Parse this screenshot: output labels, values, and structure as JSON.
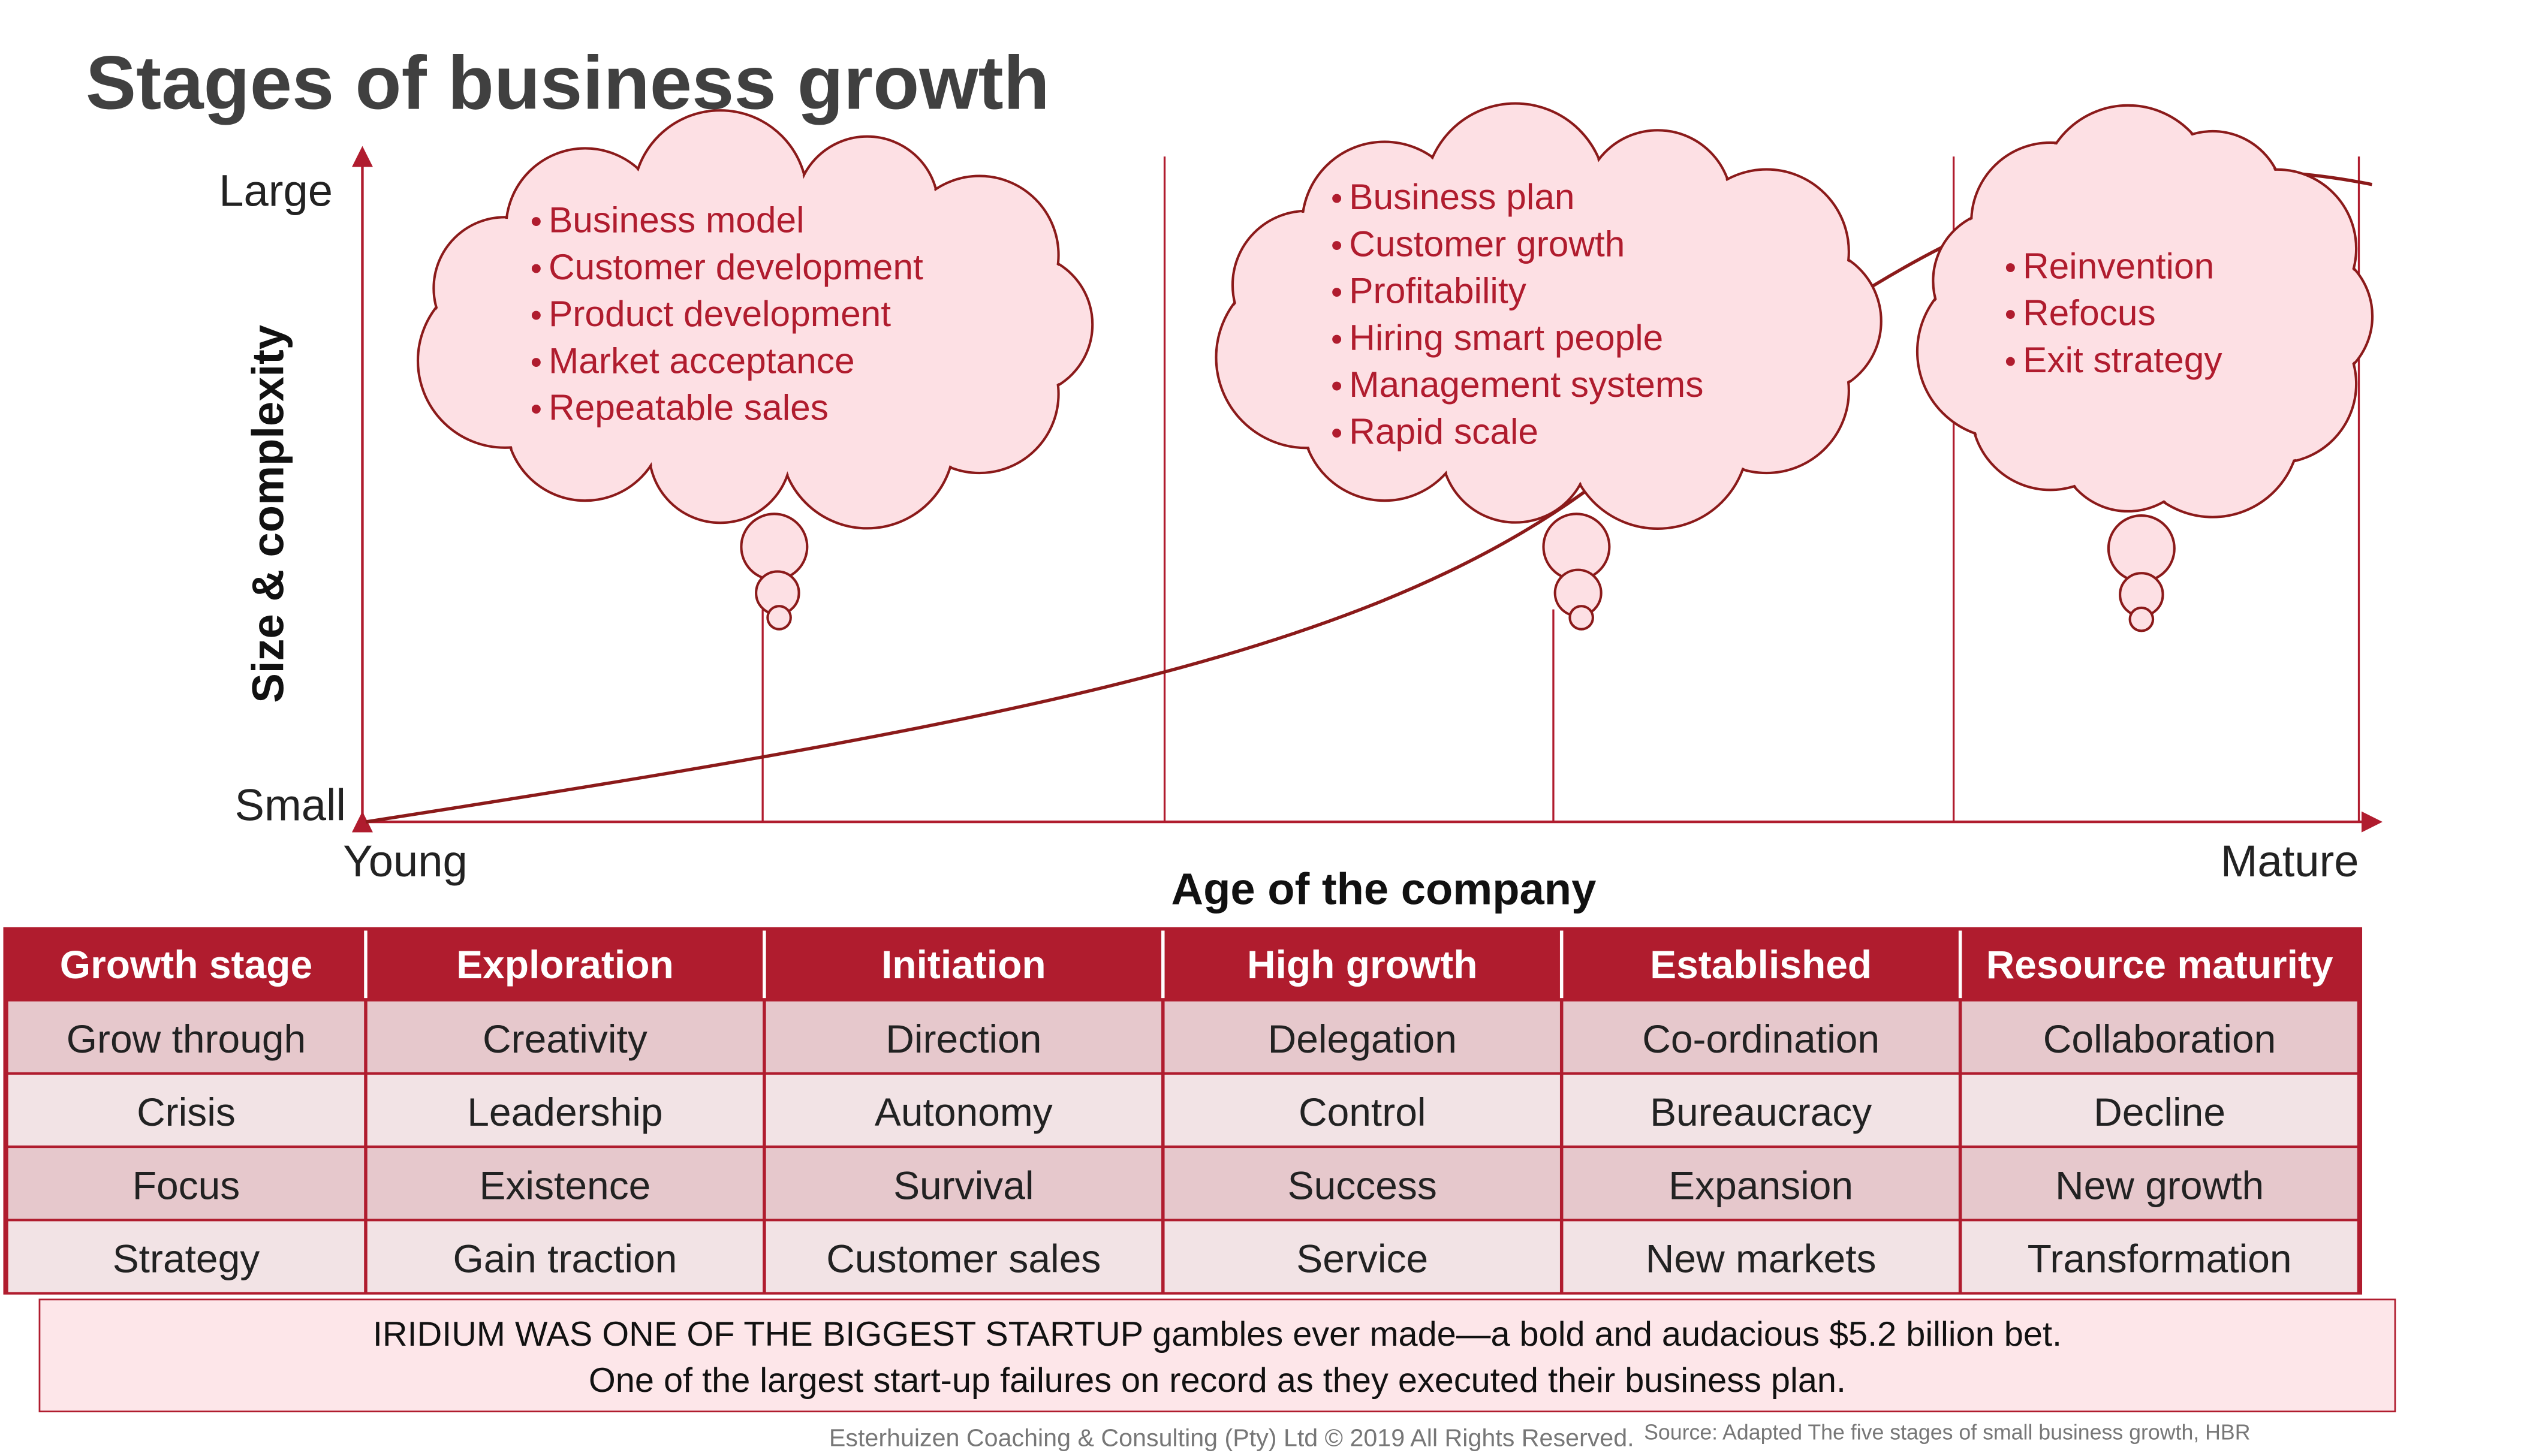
{
  "title": "Stages of business growth",
  "axes": {
    "y_label": "Size & complexity",
    "y_top": "Large",
    "y_bottom": "Small",
    "x_label": "Age of the company",
    "x_left": "Young",
    "x_right": "Mature"
  },
  "clouds": [
    {
      "items": [
        "Business model",
        "Customer development",
        "Product development",
        "Market acceptance",
        "Repeatable sales"
      ]
    },
    {
      "items": [
        "Business plan",
        "Customer growth",
        "Profitability",
        "Hiring smart people",
        "Management systems",
        "Rapid scale"
      ]
    },
    {
      "items": [
        "Reinvention",
        "Refocus",
        "Exit strategy"
      ]
    }
  ],
  "table": {
    "header": [
      "Growth stage",
      "Exploration",
      "Initiation",
      "High growth",
      "Established",
      "Resource maturity"
    ],
    "rows": [
      [
        "Grow through",
        "Creativity",
        "Direction",
        "Delegation",
        "Co-ordination",
        "Collaboration"
      ],
      [
        "Crisis",
        "Leadership",
        "Autonomy",
        "Control",
        "Bureaucracy",
        "Decline"
      ],
      [
        "Focus",
        "Existence",
        "Survival",
        "Success",
        "Expansion",
        "New growth"
      ],
      [
        "Strategy",
        "Gain traction",
        "Customer sales",
        "Service",
        "New markets",
        "Transformation"
      ]
    ]
  },
  "note": [
    "IRIDIUM WAS ONE OF THE BIGGEST STARTUP gambles ever made—a bold and audacious $5.2 billion bet.",
    "One of the largest start-up failures on record as they executed their business plan."
  ],
  "footer": "Esterhuizen Coaching & Consulting (Pty) Ltd © 2019 All Rights Reserved.",
  "source": "Source: Adapted The five stages  of small business growth, HBR"
}
